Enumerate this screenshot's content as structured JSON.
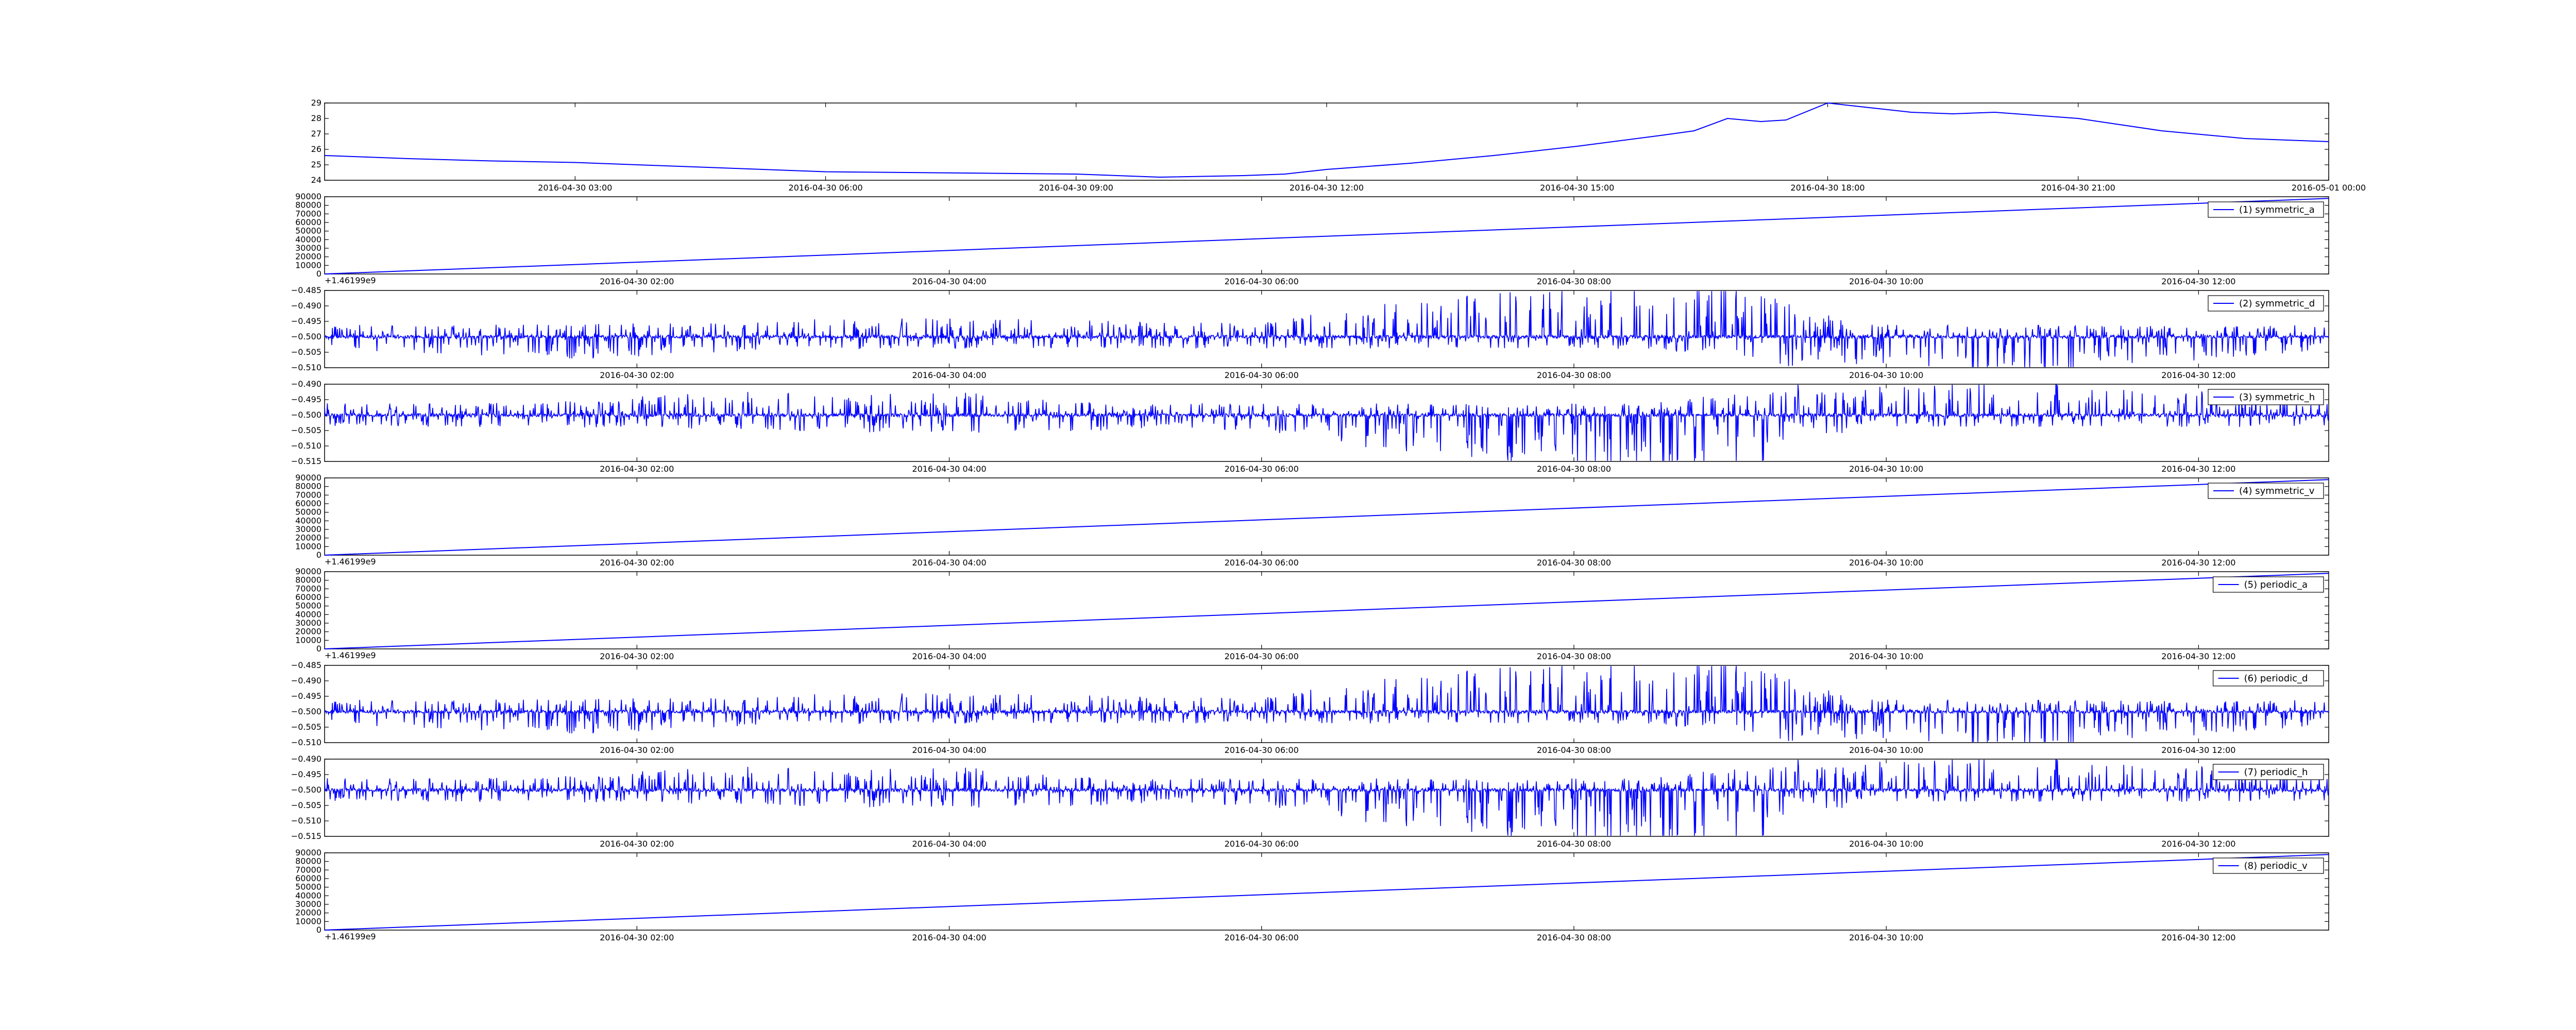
{
  "chart_data": [
    {
      "type": "line",
      "title": "",
      "xlabel": "",
      "ylabel": "",
      "offset_text": "",
      "x_tick_labels": [
        "2016-04-30 03:00",
        "2016-04-30 06:00",
        "2016-04-30 09:00",
        "2016-04-30 12:00",
        "2016-04-30 15:00",
        "2016-04-30 18:00",
        "2016-04-30 21:00",
        "2016-05-01 00:00"
      ],
      "xlim": [
        "2016-04-30 00:00",
        "2016-05-01 00:00"
      ],
      "yticks": [
        24,
        25,
        26,
        27,
        28,
        29
      ],
      "ylim": [
        24,
        29
      ],
      "legend": null,
      "series": [
        {
          "kind": "smooth",
          "color": "#0000ff",
          "x_hours": [
            0,
            1,
            2,
            3,
            4,
            5,
            6,
            7,
            8,
            9,
            10,
            11,
            11.5,
            12,
            13,
            14,
            15,
            16,
            16.4,
            16.8,
            17.2,
            17.5,
            18,
            18.5,
            19,
            19.5,
            20,
            20.5,
            21,
            22,
            23,
            24
          ],
          "values": [
            25.6,
            25.4,
            25.25,
            25.15,
            24.95,
            24.75,
            24.55,
            24.5,
            24.45,
            24.4,
            24.2,
            24.3,
            24.4,
            24.7,
            25.1,
            25.6,
            26.2,
            26.9,
            27.2,
            28.0,
            27.8,
            27.9,
            29.0,
            28.7,
            28.4,
            28.3,
            28.4,
            28.2,
            28.0,
            27.2,
            26.7,
            26.5
          ]
        }
      ],
      "grid": false
    },
    {
      "type": "line",
      "title": "",
      "offset_text": "+1.46199e9",
      "x_tick_labels": [
        "2016-04-30 02:00",
        "2016-04-30 04:00",
        "2016-04-30 06:00",
        "2016-04-30 08:00",
        "2016-04-30 10:00",
        "2016-04-30 12:00"
      ],
      "xlim": [
        "2016-04-30 00:00",
        "2016-04-30 12:50"
      ],
      "yticks": [
        0,
        10000,
        20000,
        30000,
        40000,
        50000,
        60000,
        70000,
        80000,
        90000
      ],
      "ylim": [
        0,
        90000
      ],
      "legend": {
        "label": "(1) symmetric_a",
        "placement": "top-right"
      },
      "series": [
        {
          "kind": "ramp",
          "color": "#0000ff",
          "start": 0,
          "end": 88000
        }
      ],
      "grid": false
    },
    {
      "type": "line",
      "offset_text": "",
      "x_tick_labels": [
        "2016-04-30 02:00",
        "2016-04-30 04:00",
        "2016-04-30 06:00",
        "2016-04-30 08:00",
        "2016-04-30 10:00",
        "2016-04-30 12:00"
      ],
      "xlim": [
        "2016-04-30 00:00",
        "2016-04-30 12:50"
      ],
      "yticks": [
        -0.51,
        -0.505,
        -0.5,
        -0.495,
        -0.49,
        -0.485
      ],
      "ytick_labels": [
        "−0.510",
        "−0.505",
        "−0.500",
        "−0.495",
        "−0.490",
        "−0.485"
      ],
      "ylim": [
        -0.51,
        -0.485
      ],
      "legend": {
        "label": "(2) symmetric_d",
        "placement": "top-right"
      },
      "series": [
        {
          "kind": "noise",
          "color": "#0000ff",
          "baseline": -0.5,
          "pattern": "d",
          "seed": 11
        }
      ],
      "grid": false
    },
    {
      "type": "line",
      "offset_text": "",
      "x_tick_labels": [
        "2016-04-30 02:00",
        "2016-04-30 04:00",
        "2016-04-30 06:00",
        "2016-04-30 08:00",
        "2016-04-30 10:00",
        "2016-04-30 12:00"
      ],
      "xlim": [
        "2016-04-30 00:00",
        "2016-04-30 12:50"
      ],
      "yticks": [
        -0.515,
        -0.51,
        -0.505,
        -0.5,
        -0.495,
        -0.49
      ],
      "ytick_labels": [
        "−0.515",
        "−0.510",
        "−0.505",
        "−0.500",
        "−0.495",
        "−0.490"
      ],
      "ylim": [
        -0.515,
        -0.49
      ],
      "legend": {
        "label": "(3) symmetric_h",
        "placement": "top-right"
      },
      "series": [
        {
          "kind": "noise",
          "color": "#0000ff",
          "baseline": -0.5,
          "pattern": "h",
          "seed": 23
        }
      ],
      "grid": false
    },
    {
      "type": "line",
      "offset_text": "+1.46199e9",
      "x_tick_labels": [
        "2016-04-30 02:00",
        "2016-04-30 04:00",
        "2016-04-30 06:00",
        "2016-04-30 08:00",
        "2016-04-30 10:00",
        "2016-04-30 12:00"
      ],
      "xlim": [
        "2016-04-30 00:00",
        "2016-04-30 12:50"
      ],
      "yticks": [
        0,
        10000,
        20000,
        30000,
        40000,
        50000,
        60000,
        70000,
        80000,
        90000
      ],
      "ylim": [
        0,
        90000
      ],
      "legend": {
        "label": "(4) symmetric_v",
        "placement": "top-right"
      },
      "series": [
        {
          "kind": "ramp",
          "color": "#0000ff",
          "start": 0,
          "end": 88000
        }
      ],
      "grid": false
    },
    {
      "type": "line",
      "offset_text": "+1.46199e9",
      "x_tick_labels": [
        "2016-04-30 02:00",
        "2016-04-30 04:00",
        "2016-04-30 06:00",
        "2016-04-30 08:00",
        "2016-04-30 10:00",
        "2016-04-30 12:00"
      ],
      "xlim": [
        "2016-04-30 00:00",
        "2016-04-30 12:50"
      ],
      "yticks": [
        0,
        10000,
        20000,
        30000,
        40000,
        50000,
        60000,
        70000,
        80000,
        90000
      ],
      "ylim": [
        0,
        90000
      ],
      "legend": {
        "label": "(5) periodic_a",
        "placement": "top-right"
      },
      "series": [
        {
          "kind": "ramp",
          "color": "#0000ff",
          "start": 0,
          "end": 88000
        }
      ],
      "grid": false
    },
    {
      "type": "line",
      "offset_text": "",
      "x_tick_labels": [
        "2016-04-30 02:00",
        "2016-04-30 04:00",
        "2016-04-30 06:00",
        "2016-04-30 08:00",
        "2016-04-30 10:00",
        "2016-04-30 12:00"
      ],
      "xlim": [
        "2016-04-30 00:00",
        "2016-04-30 12:50"
      ],
      "yticks": [
        -0.51,
        -0.505,
        -0.5,
        -0.495,
        -0.49,
        -0.485
      ],
      "ytick_labels": [
        "−0.510",
        "−0.505",
        "−0.500",
        "−0.495",
        "−0.490",
        "−0.485"
      ],
      "ylim": [
        -0.51,
        -0.485
      ],
      "legend": {
        "label": "(6) periodic_d",
        "placement": "top-right"
      },
      "series": [
        {
          "kind": "noise",
          "color": "#0000ff",
          "baseline": -0.5,
          "pattern": "d",
          "seed": 11
        }
      ],
      "grid": false
    },
    {
      "type": "line",
      "offset_text": "",
      "x_tick_labels": [
        "2016-04-30 02:00",
        "2016-04-30 04:00",
        "2016-04-30 06:00",
        "2016-04-30 08:00",
        "2016-04-30 10:00",
        "2016-04-30 12:00"
      ],
      "xlim": [
        "2016-04-30 00:00",
        "2016-04-30 12:50"
      ],
      "yticks": [
        -0.515,
        -0.51,
        -0.505,
        -0.5,
        -0.495,
        -0.49
      ],
      "ytick_labels": [
        "−0.515",
        "−0.510",
        "−0.505",
        "−0.500",
        "−0.495",
        "−0.490"
      ],
      "ylim": [
        -0.515,
        -0.49
      ],
      "legend": {
        "label": "(7) periodic_h",
        "placement": "top-right"
      },
      "series": [
        {
          "kind": "noise",
          "color": "#0000ff",
          "baseline": -0.5,
          "pattern": "h",
          "seed": 23
        }
      ],
      "grid": false
    },
    {
      "type": "line",
      "offset_text": "+1.46199e9",
      "x_tick_labels": [
        "2016-04-30 02:00",
        "2016-04-30 04:00",
        "2016-04-30 06:00",
        "2016-04-30 08:00",
        "2016-04-30 10:00",
        "2016-04-30 12:00"
      ],
      "xlim": [
        "2016-04-30 00:00",
        "2016-04-30 12:50"
      ],
      "yticks": [
        0,
        10000,
        20000,
        30000,
        40000,
        50000,
        60000,
        70000,
        80000,
        90000
      ],
      "ylim": [
        0,
        90000
      ],
      "legend": {
        "label": "(8) periodic_v",
        "placement": "top-right"
      },
      "series": [
        {
          "kind": "ramp",
          "color": "#0000ff",
          "start": 0,
          "end": 88000
        }
      ],
      "grid": false
    }
  ]
}
